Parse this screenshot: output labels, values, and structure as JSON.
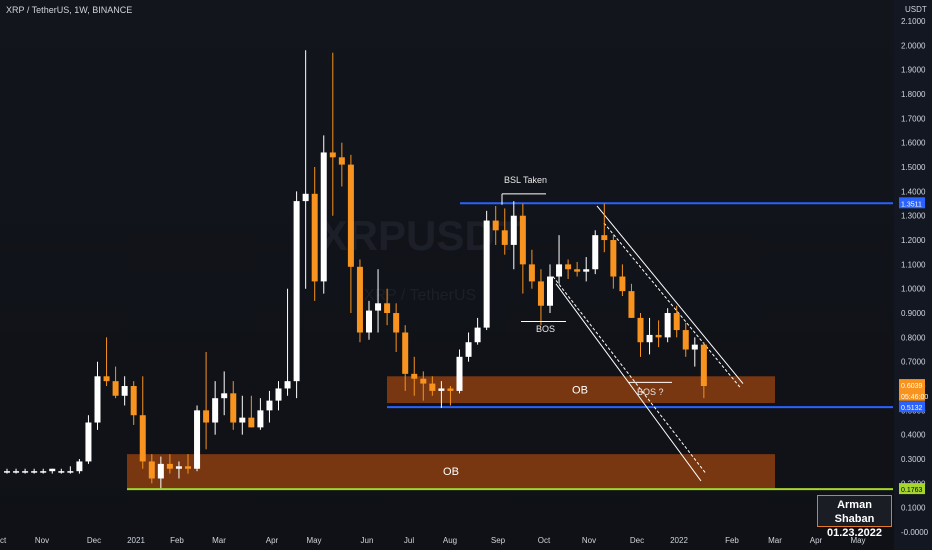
{
  "title": "XRP / TetherUS, 1W, BINANCE",
  "watermark": "XRPUSDT",
  "watermark_sub": "XRP / TetherUS",
  "signature": {
    "name": "Arman Shaban",
    "date": "01.23.2022"
  },
  "colors": {
    "up": "#ffffff",
    "down": "#f7931e",
    "ob": "#8b3e10",
    "blue_line": "#2962ff",
    "green_line": "#a5d62e",
    "bg": "#131722"
  },
  "chart_data": {
    "type": "candlestick",
    "title": "XRP / TetherUS, 1W, BINANCE",
    "y_unit": "USDT",
    "ylim": [
      0,
      2.1
    ],
    "y_ticks": [
      "2.1000",
      "2.0000",
      "1.9000",
      "1.8000",
      "1.7000",
      "1.6000",
      "1.5000",
      "1.4000",
      "1.3000",
      "1.2000",
      "1.1000",
      "1.0000",
      "0.9000",
      "0.8000",
      "0.7000",
      "0.6000",
      "0.5000",
      "0.4000",
      "0.3000",
      "0.2000",
      "0.1000",
      "-0.0000"
    ],
    "x_ticks": [
      "Oct",
      "Nov",
      "Dec",
      "2021",
      "Feb",
      "Mar",
      "Apr",
      "May",
      "Jun",
      "Jul",
      "Aug",
      "Sep",
      "Oct",
      "Nov",
      "Dec",
      "2022",
      "Feb",
      "Mar",
      "Apr",
      "May"
    ],
    "price_labels": [
      {
        "text": "1.3511",
        "value": 1.3511,
        "color": "#2962ff"
      },
      {
        "text": "0.6039",
        "value": 0.6039,
        "color": "#f7931e"
      },
      {
        "text": "05:46:00",
        "value": 0.56,
        "color": "#f7931e"
      },
      {
        "text": "0.5132",
        "value": 0.5132,
        "color": "#2962ff"
      },
      {
        "text": "0.1763",
        "value": 0.1763,
        "color": "#a5d62e"
      }
    ],
    "candles": [
      [
        0.25,
        0.26,
        0.24,
        0.25
      ],
      [
        0.25,
        0.26,
        0.24,
        0.25
      ],
      [
        0.25,
        0.26,
        0.24,
        0.25
      ],
      [
        0.25,
        0.26,
        0.24,
        0.25
      ],
      [
        0.25,
        0.26,
        0.24,
        0.25
      ],
      [
        0.25,
        0.26,
        0.24,
        0.26
      ],
      [
        0.25,
        0.26,
        0.24,
        0.25
      ],
      [
        0.25,
        0.27,
        0.24,
        0.25
      ],
      [
        0.25,
        0.3,
        0.24,
        0.29
      ],
      [
        0.29,
        0.48,
        0.28,
        0.45
      ],
      [
        0.45,
        0.7,
        0.42,
        0.64
      ],
      [
        0.64,
        0.8,
        0.6,
        0.62
      ],
      [
        0.62,
        0.68,
        0.55,
        0.56
      ],
      [
        0.56,
        0.64,
        0.52,
        0.6
      ],
      [
        0.6,
        0.62,
        0.44,
        0.48
      ],
      [
        0.48,
        0.64,
        0.26,
        0.29
      ],
      [
        0.29,
        0.32,
        0.2,
        0.22
      ],
      [
        0.22,
        0.31,
        0.18,
        0.28
      ],
      [
        0.28,
        0.32,
        0.24,
        0.26
      ],
      [
        0.26,
        0.29,
        0.22,
        0.27
      ],
      [
        0.27,
        0.32,
        0.24,
        0.26
      ],
      [
        0.26,
        0.52,
        0.25,
        0.5
      ],
      [
        0.5,
        0.74,
        0.34,
        0.45
      ],
      [
        0.45,
        0.62,
        0.4,
        0.55
      ],
      [
        0.55,
        0.66,
        0.48,
        0.57
      ],
      [
        0.57,
        0.62,
        0.42,
        0.45
      ],
      [
        0.45,
        0.56,
        0.4,
        0.47
      ],
      [
        0.47,
        0.56,
        0.43,
        0.43
      ],
      [
        0.43,
        0.55,
        0.42,
        0.5
      ],
      [
        0.5,
        0.58,
        0.45,
        0.54
      ],
      [
        0.54,
        0.62,
        0.5,
        0.59
      ],
      [
        0.59,
        1.0,
        0.56,
        0.62
      ],
      [
        0.62,
        1.4,
        0.55,
        1.36
      ],
      [
        1.36,
        1.98,
        1.0,
        1.39
      ],
      [
        1.39,
        1.5,
        0.95,
        1.03
      ],
      [
        1.03,
        1.63,
        0.98,
        1.56
      ],
      [
        1.56,
        1.97,
        1.3,
        1.54
      ],
      [
        1.54,
        1.6,
        1.42,
        1.51
      ],
      [
        1.51,
        1.55,
        0.9,
        1.09
      ],
      [
        1.09,
        1.12,
        0.78,
        0.82
      ],
      [
        0.82,
        0.95,
        0.79,
        0.91
      ],
      [
        0.91,
        1.08,
        0.82,
        0.94
      ],
      [
        0.94,
        1.0,
        0.85,
        0.9
      ],
      [
        0.9,
        0.94,
        0.74,
        0.82
      ],
      [
        0.82,
        0.85,
        0.58,
        0.65
      ],
      [
        0.65,
        0.72,
        0.56,
        0.63
      ],
      [
        0.63,
        0.66,
        0.54,
        0.61
      ],
      [
        0.61,
        0.64,
        0.56,
        0.58
      ],
      [
        0.58,
        0.62,
        0.51,
        0.59
      ],
      [
        0.59,
        0.6,
        0.52,
        0.58
      ],
      [
        0.58,
        0.75,
        0.57,
        0.72
      ],
      [
        0.72,
        0.82,
        0.7,
        0.78
      ],
      [
        0.78,
        0.88,
        0.77,
        0.84
      ],
      [
        0.84,
        1.32,
        0.83,
        1.28
      ],
      [
        1.28,
        1.34,
        1.18,
        1.24
      ],
      [
        1.24,
        1.33,
        1.14,
        1.18
      ],
      [
        1.18,
        1.36,
        1.08,
        1.3
      ],
      [
        1.3,
        1.35,
        0.98,
        1.1
      ],
      [
        1.1,
        1.16,
        1.0,
        1.03
      ],
      [
        1.03,
        1.08,
        0.85,
        0.93
      ],
      [
        0.93,
        1.1,
        0.9,
        1.05
      ],
      [
        1.05,
        1.22,
        1.02,
        1.1
      ],
      [
        1.1,
        1.12,
        1.04,
        1.08
      ],
      [
        1.08,
        1.11,
        1.05,
        1.07
      ],
      [
        1.07,
        1.13,
        1.03,
        1.08
      ],
      [
        1.08,
        1.24,
        1.06,
        1.22
      ],
      [
        1.22,
        1.35,
        1.15,
        1.2
      ],
      [
        1.2,
        1.22,
        1.0,
        1.05
      ],
      [
        1.05,
        1.1,
        0.97,
        0.99
      ],
      [
        0.99,
        1.02,
        0.88,
        0.88
      ],
      [
        0.88,
        0.9,
        0.72,
        0.78
      ],
      [
        0.78,
        0.88,
        0.73,
        0.81
      ],
      [
        0.81,
        0.87,
        0.76,
        0.8
      ],
      [
        0.8,
        0.92,
        0.78,
        0.9
      ],
      [
        0.9,
        0.93,
        0.8,
        0.83
      ],
      [
        0.83,
        0.86,
        0.72,
        0.75
      ],
      [
        0.75,
        0.8,
        0.68,
        0.77
      ],
      [
        0.77,
        0.78,
        0.55,
        0.6
      ]
    ],
    "levels": [
      {
        "name": "BSL",
        "value": 1.3511
      },
      {
        "name": "support",
        "value": 0.5132
      },
      {
        "name": "low",
        "value": 0.1763
      }
    ],
    "order_blocks": [
      {
        "label": "OB",
        "low": 0.53,
        "high": 0.64
      },
      {
        "label": "OB",
        "low": 0.18,
        "high": 0.32
      }
    ],
    "annotations": [
      {
        "text": "BSL Taken",
        "value": 1.36
      },
      {
        "text": "BOS",
        "value": 0.855
      },
      {
        "text": "BOS ?",
        "value": 0.61
      }
    ],
    "grid": false,
    "legend": "none"
  }
}
